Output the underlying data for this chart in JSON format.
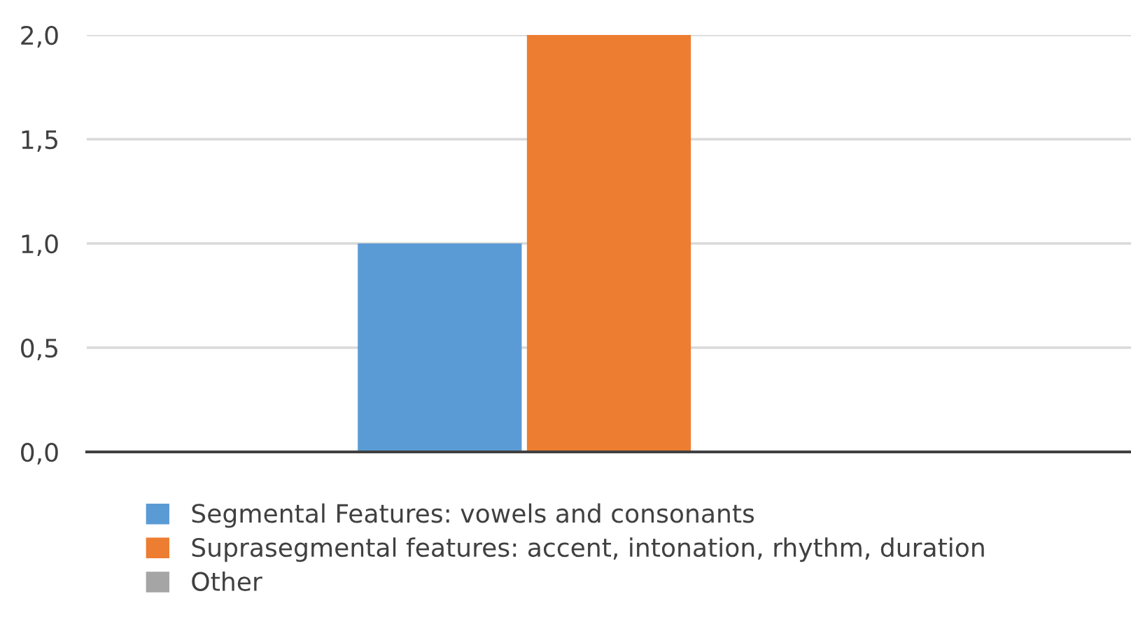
{
  "chart_data": {
    "type": "bar",
    "categories": [
      null
    ],
    "series": [
      {
        "name": "Segmental Features: vowels and consonants",
        "color": "#5b9bd5",
        "values": [
          1.0
        ]
      },
      {
        "name": "Suprasegmental features: accent, intonation, rhythm, duration",
        "color": "#ed7d31",
        "values": [
          2.0
        ]
      },
      {
        "name": "Other",
        "color": "#a5a5a5",
        "values": [
          null
        ]
      }
    ],
    "ylim": [
      0,
      2
    ],
    "yticks": [
      {
        "value": 0,
        "label": "0,0"
      },
      {
        "value": 0.5,
        "label": "0,5"
      },
      {
        "value": 1,
        "label": "1,0"
      },
      {
        "value": 1.5,
        "label": "1,5"
      },
      {
        "value": 2,
        "label": "2,0"
      }
    ],
    "grid": "y",
    "legend": "bottom",
    "tick_labels": "y"
  }
}
